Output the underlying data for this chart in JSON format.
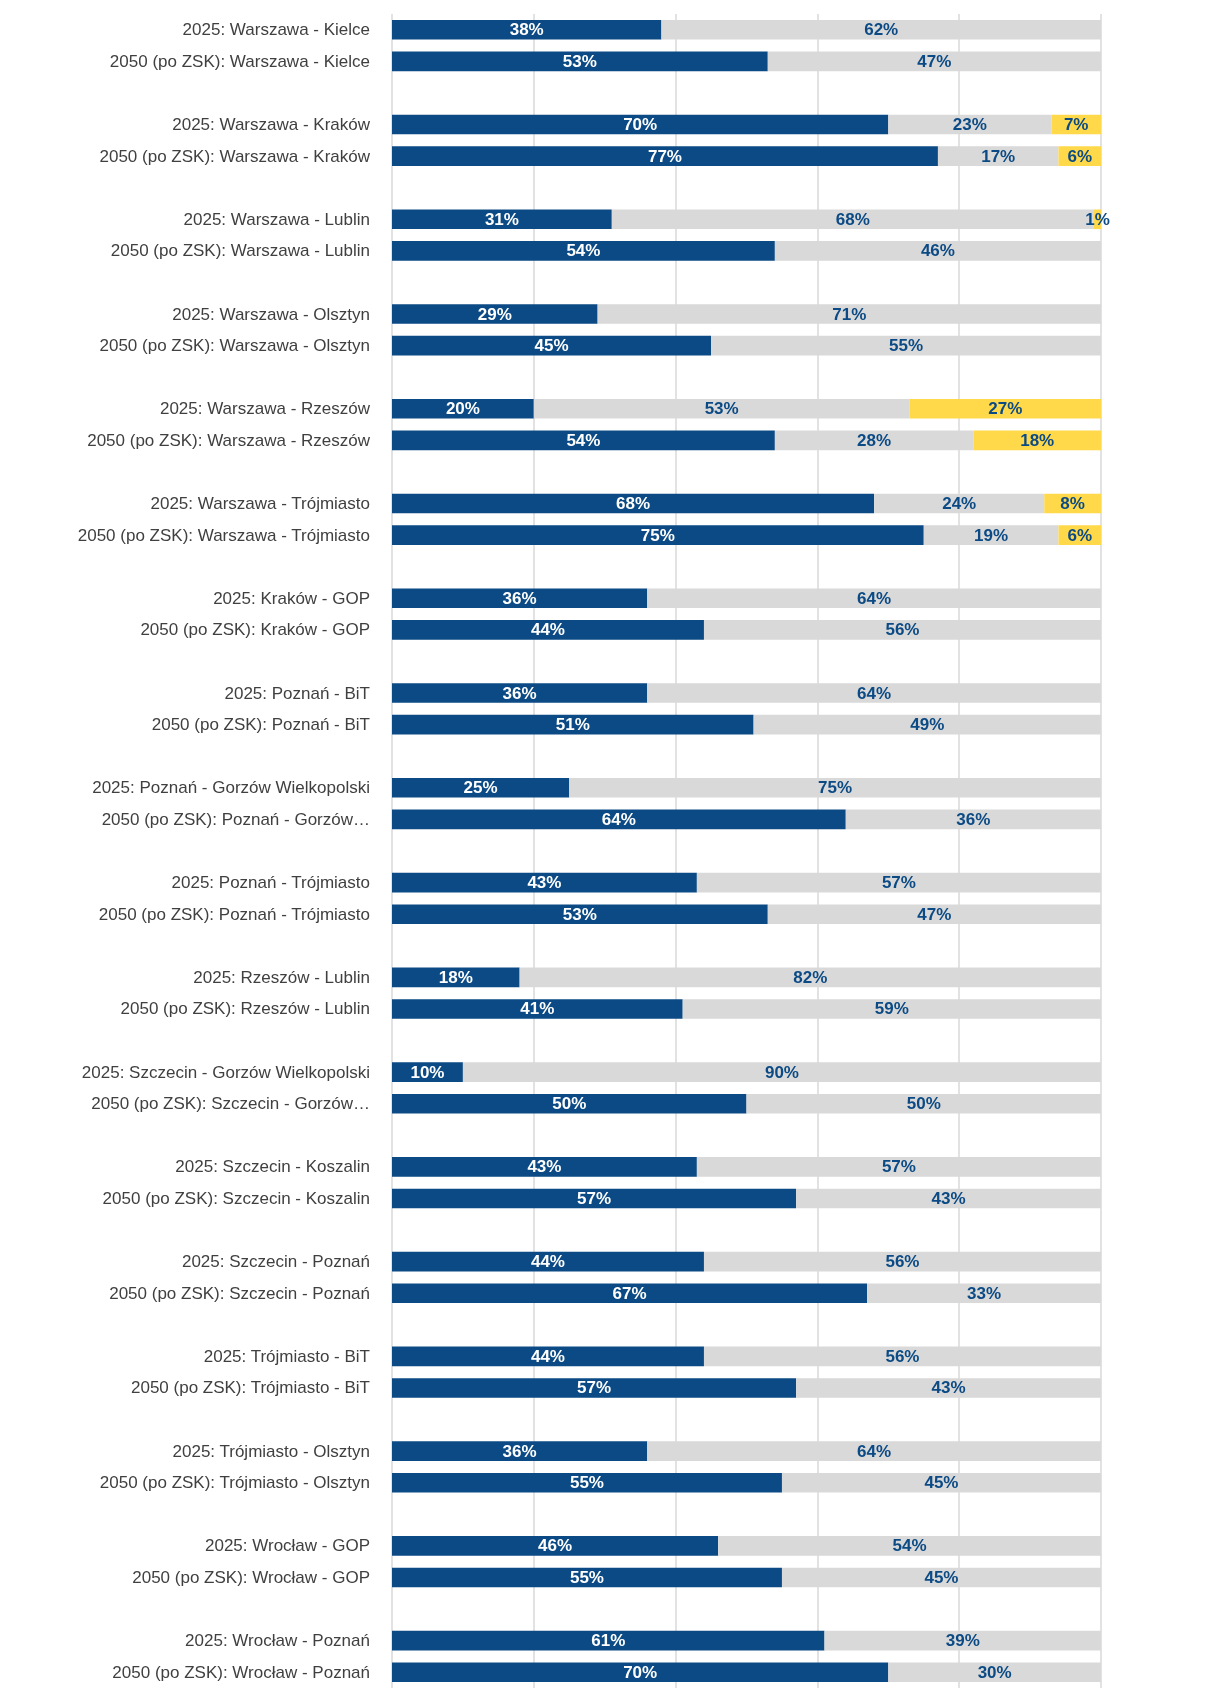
{
  "chart_data": {
    "type": "bar",
    "orientation": "horizontal",
    "stacked": true,
    "grid": "x",
    "tick_labels": "y",
    "xlim": [
      0,
      100
    ],
    "xticks": [
      {
        "value": 0,
        "label": null
      },
      {
        "value": 20,
        "label": null
      },
      {
        "value": 40,
        "label": null
      },
      {
        "value": 60,
        "label": null
      },
      {
        "value": 80,
        "label": null
      },
      {
        "value": 100,
        "label": null
      }
    ],
    "categories": [
      "2025: Warszawa - Kielce",
      "2050 (po ZSK): Warszawa - Kielce",
      null,
      "2025: Warszawa - Kraków",
      "2050 (po ZSK): Warszawa - Kraków",
      null,
      "2025: Warszawa - Lublin",
      "2050 (po ZSK): Warszawa - Lublin",
      null,
      "2025: Warszawa - Olsztyn",
      "2050 (po ZSK): Warszawa - Olsztyn",
      null,
      "2025: Warszawa - Rzeszów",
      "2050 (po ZSK): Warszawa - Rzeszów",
      null,
      "2025: Warszawa - Trójmiasto",
      "2050 (po ZSK): Warszawa - Trójmiasto",
      null,
      "2025: Kraków - GOP",
      "2050 (po ZSK): Kraków - GOP",
      null,
      "2025: Poznań - BiT",
      "2050 (po ZSK): Poznań - BiT",
      null,
      "2025: Poznań - Gorzów Wielkopolski",
      "2050 (po ZSK): Poznań - Gorzów…",
      null,
      "2025: Poznań - Trójmiasto",
      "2050 (po ZSK): Poznań - Trójmiasto",
      null,
      "2025: Rzeszów - Lublin",
      "2050 (po ZSK): Rzeszów - Lublin",
      null,
      "2025: Szczecin - Gorzów Wielkopolski",
      "2050 (po ZSK): Szczecin - Gorzów…",
      null,
      "2025: Szczecin - Koszalin",
      "2050 (po ZSK): Szczecin - Koszalin",
      null,
      "2025: Szczecin - Poznań",
      "2050 (po ZSK): Szczecin - Poznań",
      null,
      "2025: Trójmiasto - BiT",
      "2050 (po ZSK): Trójmiasto - BiT",
      null,
      "2025: Trójmiasto - Olsztyn",
      "2050 (po ZSK): Trójmiasto - Olsztyn",
      null,
      "2025: Wrocław - GOP",
      "2050 (po ZSK): Wrocław - GOP",
      null,
      "2025: Wrocław - Poznań",
      "2050 (po ZSK): Wrocław - Poznań"
    ],
    "series": [
      {
        "color": "#0b4a84",
        "values": [
          38,
          53,
          null,
          70,
          77,
          null,
          31,
          54,
          null,
          29,
          45,
          null,
          20,
          54,
          null,
          68,
          75,
          null,
          36,
          44,
          null,
          36,
          51,
          null,
          25,
          64,
          null,
          43,
          53,
          null,
          18,
          41,
          null,
          10,
          50,
          null,
          43,
          57,
          null,
          44,
          67,
          null,
          44,
          57,
          null,
          36,
          55,
          null,
          46,
          55,
          null,
          61,
          70
        ],
        "value_labels": [
          "38%",
          "53%",
          null,
          "70%",
          "77%",
          null,
          "31%",
          "54%",
          null,
          "29%",
          "45%",
          null,
          "20%",
          "54%",
          null,
          "68%",
          "75%",
          null,
          "36%",
          "44%",
          null,
          "36%",
          "51%",
          null,
          "25%",
          "64%",
          null,
          "43%",
          "53%",
          null,
          "18%",
          "41%",
          null,
          "10%",
          "50%",
          null,
          "43%",
          "57%",
          null,
          "44%",
          "67%",
          null,
          "44%",
          "57%",
          null,
          "36%",
          "55%",
          null,
          "46%",
          "55%",
          null,
          "61%",
          "70%"
        ]
      },
      {
        "color": "#d9d9d9",
        "values": [
          62,
          47,
          null,
          23,
          17,
          null,
          68,
          46,
          null,
          71,
          55,
          null,
          53,
          28,
          null,
          24,
          19,
          null,
          64,
          56,
          null,
          64,
          49,
          null,
          75,
          36,
          null,
          57,
          47,
          null,
          82,
          59,
          null,
          90,
          50,
          null,
          57,
          43,
          null,
          56,
          33,
          null,
          56,
          43,
          null,
          64,
          45,
          null,
          54,
          45,
          null,
          39,
          30
        ],
        "value_labels": [
          "62%",
          "47%",
          null,
          "23%",
          "17%",
          null,
          "68%",
          "46%",
          null,
          "71%",
          "55%",
          null,
          "53%",
          "28%",
          null,
          "24%",
          "19%",
          null,
          "64%",
          "56%",
          null,
          "64%",
          "49%",
          null,
          "75%",
          "36%",
          null,
          "57%",
          "47%",
          null,
          "82%",
          "59%",
          null,
          "90%",
          "50%",
          null,
          "57%",
          "43%",
          null,
          "56%",
          "33%",
          null,
          "56%",
          "43%",
          null,
          "64%",
          "45%",
          null,
          "54%",
          "45%",
          null,
          "39%",
          "30%"
        ]
      },
      {
        "color": "#ffd94a",
        "values": [
          null,
          null,
          null,
          7,
          6,
          null,
          1,
          null,
          null,
          null,
          null,
          null,
          27,
          18,
          null,
          8,
          6,
          null,
          null,
          null,
          null,
          null,
          null,
          null,
          null,
          null,
          null,
          null,
          null,
          null,
          null,
          null,
          null,
          null,
          null,
          null,
          null,
          null,
          null,
          null,
          null,
          null,
          null,
          null,
          null,
          null,
          null,
          null,
          null,
          null,
          null,
          null,
          null
        ],
        "value_labels": [
          null,
          null,
          null,
          "7%",
          "6%",
          null,
          "1%",
          null,
          null,
          null,
          null,
          null,
          "27%",
          "18%",
          null,
          "8%",
          "6%",
          null,
          null,
          null,
          null,
          null,
          null,
          null,
          null,
          null,
          null,
          null,
          null,
          null,
          null,
          null,
          null,
          null,
          null,
          null,
          null,
          null,
          null,
          null,
          null,
          null,
          null,
          null,
          null,
          null,
          null,
          null,
          null,
          null,
          null,
          null,
          null
        ]
      }
    ]
  }
}
